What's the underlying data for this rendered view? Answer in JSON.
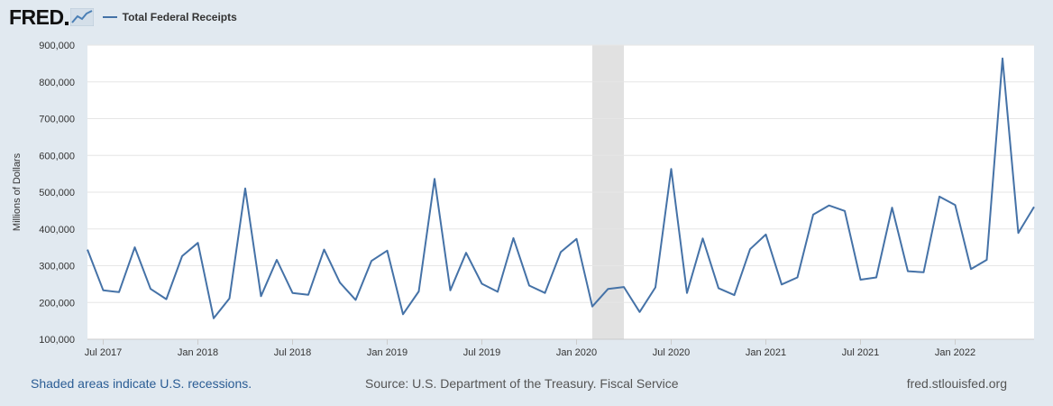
{
  "header": {
    "logo_text": "FRED",
    "legend_label": "Total Federal Receipts",
    "series_color": "#4572a7"
  },
  "footer": {
    "recession_note": "Shaded areas indicate U.S. recessions.",
    "source": "Source: U.S. Department of the Treasury. Fiscal Service",
    "site": "fred.stlouisfed.org"
  },
  "chart_data": {
    "type": "line",
    "title": "Total Federal Receipts",
    "xlabel": "",
    "ylabel": "Millions of Dollars",
    "ylim": [
      100000,
      900000
    ],
    "yticks": [
      100000,
      200000,
      300000,
      400000,
      500000,
      600000,
      700000,
      800000,
      900000
    ],
    "ytick_labels": [
      "100,000",
      "200,000",
      "300,000",
      "400,000",
      "500,000",
      "600,000",
      "700,000",
      "800,000",
      "900,000"
    ],
    "x_start_month_index": 0,
    "x_end_month_index": 60,
    "xticks": [
      1,
      7,
      13,
      19,
      25,
      31,
      37,
      43,
      49,
      55
    ],
    "xtick_labels": [
      "Jul 2017",
      "Jan 2018",
      "Jul 2018",
      "Jan 2019",
      "Jul 2019",
      "Jan 2020",
      "Jul 2020",
      "Jan 2021",
      "Jul 2021",
      "Jan 2022"
    ],
    "recessions": [
      {
        "start_month_index": 32,
        "end_month_index": 34,
        "label": "Feb 2020 - Apr 2020"
      }
    ],
    "series": [
      {
        "name": "Total Federal Receipts",
        "start": "Jun 2017",
        "values": [
          344000,
          233000,
          228000,
          350000,
          237000,
          209000,
          326000,
          362000,
          157000,
          211000,
          510000,
          217000,
          316000,
          226000,
          221000,
          344000,
          254000,
          207000,
          313000,
          341000,
          168000,
          230000,
          536000,
          233000,
          335000,
          251000,
          229000,
          375000,
          246000,
          226000,
          337000,
          373000,
          189000,
          237000,
          242000,
          174000,
          241000,
          563000,
          226000,
          374000,
          239000,
          220000,
          345000,
          385000,
          249000,
          268000,
          439000,
          464000,
          449000,
          262000,
          268000,
          458000,
          285000,
          282000,
          488000,
          465000,
          291000,
          316000,
          864000,
          389000,
          460000
        ]
      }
    ]
  }
}
